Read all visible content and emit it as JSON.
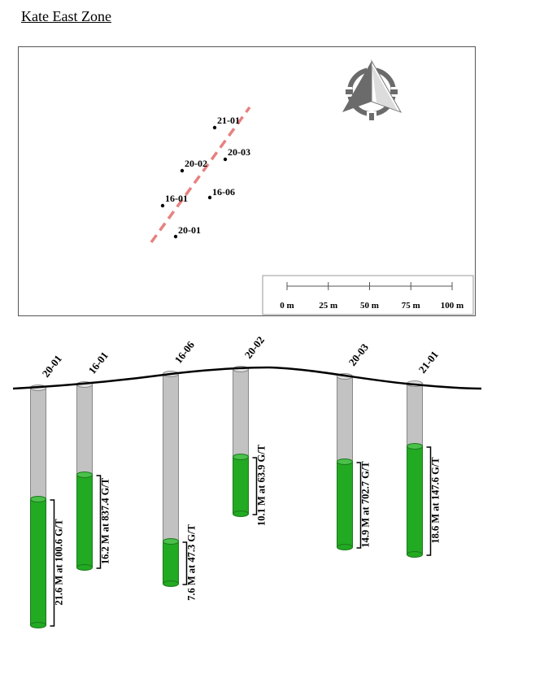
{
  "title": "Kate East Zone",
  "map": {
    "holes": [
      {
        "id": "21-01"
      },
      {
        "id": "20-03"
      },
      {
        "id": "20-02"
      },
      {
        "id": "16-06"
      },
      {
        "id": "16-01"
      },
      {
        "id": "20-01"
      }
    ],
    "scale_bar": {
      "labels": [
        "0 m",
        "25 m",
        "50 m",
        "75 m",
        "100 m"
      ]
    },
    "colors": {
      "trace": "#e88080",
      "compass_dark": "#6b6b6b",
      "compass_light": "#c9c9c9"
    }
  },
  "section": {
    "colors": {
      "core": "#c2c2c2",
      "mineralized": "#22aa22",
      "ground": "#000000"
    },
    "holes": [
      {
        "id": "20-01",
        "interval": "21.6 M at 100.6 G/T"
      },
      {
        "id": "16-01",
        "interval": "16.2 M at 837.4 G/T"
      },
      {
        "id": "16-06",
        "interval": "7.6 M at 47.3 G/T"
      },
      {
        "id": "20-02",
        "interval": "10.1 M at 63.9 G/T"
      },
      {
        "id": "20-03",
        "interval": "14.9 M at 702.7 G/T"
      },
      {
        "id": "21-01",
        "interval": "18.6 M at 147.6 G/T"
      }
    ]
  }
}
